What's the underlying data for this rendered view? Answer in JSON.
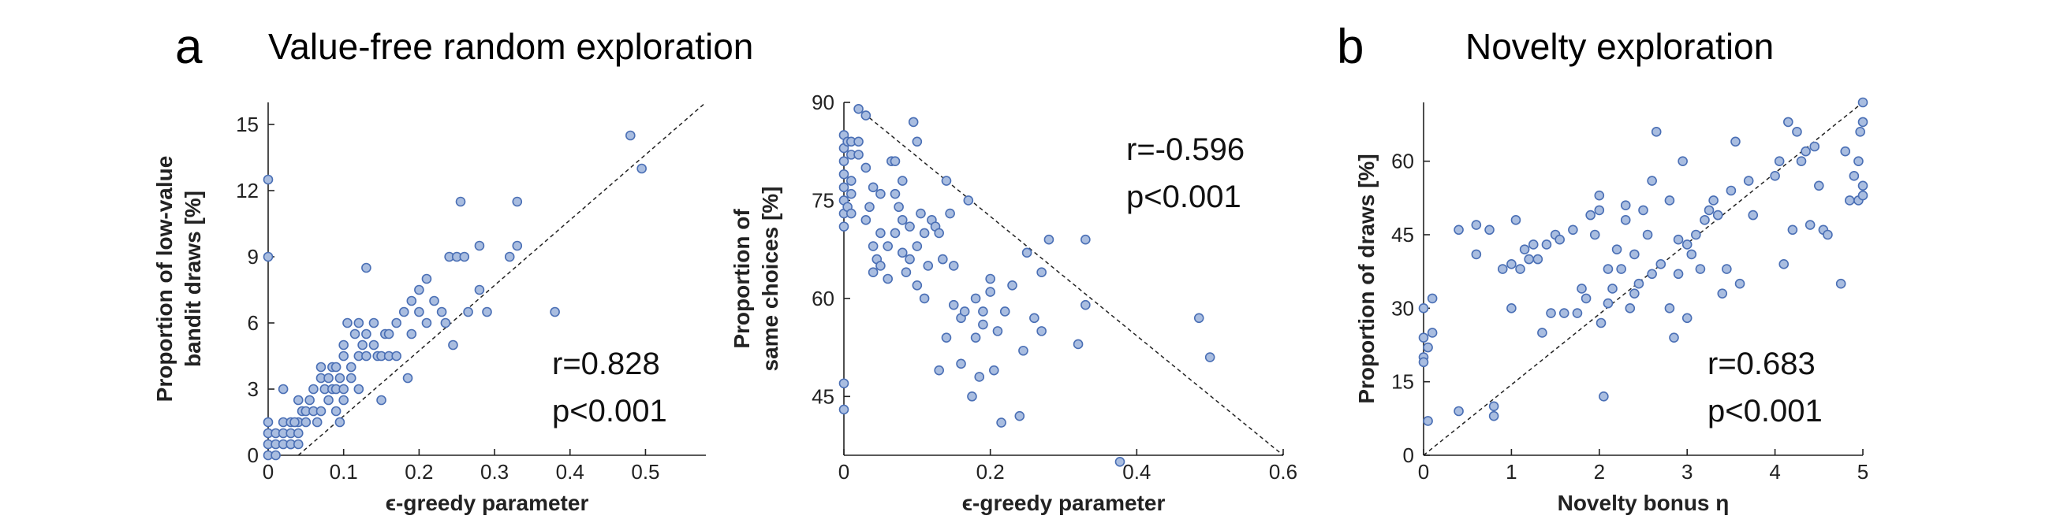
{
  "labels": {
    "a": {
      "letter": "a",
      "title": "Value-free random exploration"
    },
    "b": {
      "letter": "b",
      "title": "Novelty exploration"
    }
  },
  "chart_data": [
    {
      "type": "scatter",
      "panel": "a",
      "xlabel": "ϵ-greedy parameter",
      "ylabel": [
        "Proportion of low-value",
        "bandit draws [%]"
      ],
      "xlim": [
        0,
        0.58
      ],
      "ylim": [
        0,
        16
      ],
      "xticks": [
        0,
        0.1,
        0.2,
        0.3,
        0.4,
        0.5
      ],
      "xtick_labels": [
        "0",
        "0.1",
        "0.2",
        "0.3",
        "0.4",
        "0.5"
      ],
      "yticks": [
        0,
        3,
        6,
        9,
        12,
        15
      ],
      "ytick_labels": [
        "0",
        "3",
        "6",
        "9",
        "12",
        "15"
      ],
      "stats": [
        "r=0.828",
        "p<0.001"
      ],
      "fit_line": [
        [
          0.04,
          0
        ],
        [
          0.58,
          16
        ]
      ],
      "points": [
        [
          0,
          12.5
        ],
        [
          0,
          9
        ],
        [
          0,
          1.5
        ],
        [
          0,
          1
        ],
        [
          0,
          0.5
        ],
        [
          0,
          0
        ],
        [
          0.01,
          1
        ],
        [
          0.01,
          0.5
        ],
        [
          0.01,
          0
        ],
        [
          0.02,
          1
        ],
        [
          0.02,
          0.5
        ],
        [
          0.02,
          1.5
        ],
        [
          0.03,
          1
        ],
        [
          0.03,
          0.5
        ],
        [
          0.03,
          0.5
        ],
        [
          0.04,
          1.5
        ],
        [
          0.04,
          1
        ],
        [
          0.04,
          0.5
        ],
        [
          0.02,
          3
        ],
        [
          0.03,
          1.5
        ],
        [
          0.035,
          1.5
        ],
        [
          0.04,
          2.5
        ],
        [
          0.045,
          2
        ],
        [
          0.05,
          1.5
        ],
        [
          0.05,
          2
        ],
        [
          0.055,
          2.5
        ],
        [
          0.06,
          2
        ],
        [
          0.06,
          3
        ],
        [
          0.065,
          1.5
        ],
        [
          0.07,
          2
        ],
        [
          0.07,
          3.5
        ],
        [
          0.07,
          4
        ],
        [
          0.075,
          3
        ],
        [
          0.08,
          2.5
        ],
        [
          0.08,
          3.5
        ],
        [
          0.085,
          3
        ],
        [
          0.085,
          4
        ],
        [
          0.09,
          2
        ],
        [
          0.09,
          3
        ],
        [
          0.09,
          4
        ],
        [
          0.095,
          3.5
        ],
        [
          0.095,
          1.5
        ],
        [
          0.1,
          4.5
        ],
        [
          0.1,
          3
        ],
        [
          0.1,
          2.5
        ],
        [
          0.1,
          5
        ],
        [
          0.105,
          6
        ],
        [
          0.11,
          4
        ],
        [
          0.11,
          3.5
        ],
        [
          0.115,
          5.5
        ],
        [
          0.12,
          3
        ],
        [
          0.12,
          4.5
        ],
        [
          0.12,
          6
        ],
        [
          0.125,
          5
        ],
        [
          0.13,
          4.5
        ],
        [
          0.13,
          5.5
        ],
        [
          0.13,
          8.5
        ],
        [
          0.14,
          5
        ],
        [
          0.14,
          6
        ],
        [
          0.145,
          4.5
        ],
        [
          0.15,
          2.5
        ],
        [
          0.15,
          4.5
        ],
        [
          0.155,
          5.5
        ],
        [
          0.16,
          5.5
        ],
        [
          0.16,
          4.5
        ],
        [
          0.17,
          6
        ],
        [
          0.17,
          4.5
        ],
        [
          0.18,
          6.5
        ],
        [
          0.185,
          3.5
        ],
        [
          0.19,
          5.5
        ],
        [
          0.19,
          7
        ],
        [
          0.2,
          7.5
        ],
        [
          0.2,
          6.5
        ],
        [
          0.21,
          6
        ],
        [
          0.21,
          8
        ],
        [
          0.22,
          7
        ],
        [
          0.23,
          6.5
        ],
        [
          0.235,
          6
        ],
        [
          0.24,
          9
        ],
        [
          0.245,
          5
        ],
        [
          0.25,
          9
        ],
        [
          0.255,
          11.5
        ],
        [
          0.26,
          9
        ],
        [
          0.265,
          6.5
        ],
        [
          0.28,
          9.5
        ],
        [
          0.28,
          7.5
        ],
        [
          0.29,
          6.5
        ],
        [
          0.32,
          9
        ],
        [
          0.33,
          11.5
        ],
        [
          0.33,
          9.5
        ],
        [
          0.38,
          6.5
        ],
        [
          0.48,
          14.5
        ],
        [
          0.495,
          13
        ]
      ]
    },
    {
      "type": "scatter",
      "panel": "a",
      "xlabel": "ϵ-greedy parameter",
      "ylabel": [
        "Proportion of",
        "same choices [%]"
      ],
      "xlim": [
        0,
        0.6
      ],
      "ylim": [
        36,
        90
      ],
      "xticks": [
        0,
        0.2,
        0.4,
        0.6
      ],
      "xtick_labels": [
        "0",
        "0.2",
        "0.4",
        "0.6"
      ],
      "yticks": [
        45,
        60,
        75,
        90
      ],
      "ytick_labels": [
        "45",
        "60",
        "75",
        "90"
      ],
      "stats": [
        "r=-0.596",
        "p<0.001"
      ],
      "fit_line": [
        [
          0.02,
          89
        ],
        [
          0.6,
          36
        ]
      ],
      "points": [
        [
          0,
          85
        ],
        [
          0,
          83
        ],
        [
          0,
          81
        ],
        [
          0,
          79
        ],
        [
          0,
          77
        ],
        [
          0,
          75
        ],
        [
          0,
          73
        ],
        [
          0,
          71
        ],
        [
          0,
          47
        ],
        [
          0,
          43
        ],
        [
          0.005,
          84
        ],
        [
          0.005,
          74
        ],
        [
          0.01,
          84
        ],
        [
          0.01,
          82
        ],
        [
          0.01,
          78
        ],
        [
          0.01,
          76
        ],
        [
          0.01,
          73
        ],
        [
          0.02,
          89
        ],
        [
          0.02,
          84
        ],
        [
          0.02,
          82
        ],
        [
          0.03,
          88
        ],
        [
          0.03,
          80
        ],
        [
          0.03,
          72
        ],
        [
          0.035,
          74
        ],
        [
          0.04,
          77
        ],
        [
          0.04,
          68
        ],
        [
          0.04,
          64
        ],
        [
          0.045,
          66
        ],
        [
          0.05,
          76
        ],
        [
          0.05,
          70
        ],
        [
          0.05,
          65
        ],
        [
          0.06,
          68
        ],
        [
          0.06,
          63
        ],
        [
          0.065,
          81
        ],
        [
          0.07,
          81
        ],
        [
          0.07,
          76
        ],
        [
          0.07,
          70
        ],
        [
          0.075,
          74
        ],
        [
          0.08,
          78
        ],
        [
          0.08,
          72
        ],
        [
          0.08,
          67
        ],
        [
          0.085,
          64
        ],
        [
          0.09,
          71
        ],
        [
          0.09,
          66
        ],
        [
          0.095,
          87
        ],
        [
          0.1,
          84
        ],
        [
          0.1,
          68
        ],
        [
          0.1,
          62
        ],
        [
          0.105,
          73
        ],
        [
          0.11,
          70
        ],
        [
          0.11,
          60
        ],
        [
          0.115,
          65
        ],
        [
          0.12,
          72
        ],
        [
          0.125,
          71
        ],
        [
          0.13,
          70
        ],
        [
          0.13,
          49
        ],
        [
          0.135,
          66
        ],
        [
          0.14,
          78
        ],
        [
          0.14,
          54
        ],
        [
          0.145,
          73
        ],
        [
          0.15,
          65
        ],
        [
          0.15,
          59
        ],
        [
          0.16,
          57
        ],
        [
          0.16,
          50
        ],
        [
          0.165,
          58
        ],
        [
          0.17,
          75
        ],
        [
          0.175,
          45
        ],
        [
          0.18,
          60
        ],
        [
          0.18,
          54
        ],
        [
          0.185,
          48
        ],
        [
          0.19,
          58
        ],
        [
          0.19,
          56
        ],
        [
          0.2,
          63
        ],
        [
          0.2,
          61
        ],
        [
          0.205,
          49
        ],
        [
          0.21,
          55
        ],
        [
          0.215,
          41
        ],
        [
          0.22,
          58
        ],
        [
          0.23,
          62
        ],
        [
          0.24,
          42
        ],
        [
          0.245,
          52
        ],
        [
          0.25,
          67
        ],
        [
          0.26,
          57
        ],
        [
          0.27,
          64
        ],
        [
          0.27,
          55
        ],
        [
          0.28,
          69
        ],
        [
          0.32,
          53
        ],
        [
          0.33,
          59
        ],
        [
          0.33,
          69
        ],
        [
          0.377,
          35
        ],
        [
          0.485,
          57
        ],
        [
          0.5,
          51
        ]
      ]
    },
    {
      "type": "scatter",
      "panel": "b",
      "xlabel": "Novelty bonus η",
      "ylabel": [
        "Proportion of draws [%]"
      ],
      "xlim": [
        0,
        5
      ],
      "ylim": [
        0,
        72
      ],
      "xticks": [
        0,
        1,
        2,
        3,
        4,
        5
      ],
      "xtick_labels": [
        "0",
        "1",
        "2",
        "3",
        "4",
        "5"
      ],
      "yticks": [
        0,
        15,
        30,
        45,
        60
      ],
      "ytick_labels": [
        "0",
        "15",
        "30",
        "45",
        "60"
      ],
      "stats": [
        "r=0.683",
        "p<0.001"
      ],
      "fit_line": [
        [
          0,
          0
        ],
        [
          5,
          72
        ]
      ],
      "points": [
        [
          0,
          30
        ],
        [
          0,
          24
        ],
        [
          0,
          20
        ],
        [
          0,
          19
        ],
        [
          0.05,
          7
        ],
        [
          0.05,
          22
        ],
        [
          0.1,
          25
        ],
        [
          0.1,
          32
        ],
        [
          0.4,
          46
        ],
        [
          0.4,
          9
        ],
        [
          0.6,
          47
        ],
        [
          0.6,
          41
        ],
        [
          0.75,
          46
        ],
        [
          0.8,
          10
        ],
        [
          0.8,
          8
        ],
        [
          0.9,
          38
        ],
        [
          1,
          39
        ],
        [
          1,
          30
        ],
        [
          1.05,
          48
        ],
        [
          1.1,
          38
        ],
        [
          1.15,
          42
        ],
        [
          1.2,
          40
        ],
        [
          1.25,
          43
        ],
        [
          1.3,
          40
        ],
        [
          1.35,
          25
        ],
        [
          1.4,
          43
        ],
        [
          1.45,
          29
        ],
        [
          1.5,
          45
        ],
        [
          1.55,
          44
        ],
        [
          1.6,
          29
        ],
        [
          1.7,
          46
        ],
        [
          1.75,
          29
        ],
        [
          1.8,
          34
        ],
        [
          1.85,
          32
        ],
        [
          1.9,
          49
        ],
        [
          1.95,
          45
        ],
        [
          2,
          53
        ],
        [
          2,
          50
        ],
        [
          2.02,
          27
        ],
        [
          2.05,
          12
        ],
        [
          2.1,
          38
        ],
        [
          2.1,
          31
        ],
        [
          2.15,
          34
        ],
        [
          2.2,
          42
        ],
        [
          2.25,
          38
        ],
        [
          2.3,
          48
        ],
        [
          2.3,
          51
        ],
        [
          2.35,
          30
        ],
        [
          2.4,
          41
        ],
        [
          2.4,
          33
        ],
        [
          2.45,
          35
        ],
        [
          2.5,
          50
        ],
        [
          2.55,
          45
        ],
        [
          2.6,
          56
        ],
        [
          2.6,
          37
        ],
        [
          2.65,
          66
        ],
        [
          2.7,
          39
        ],
        [
          2.8,
          52
        ],
        [
          2.8,
          30
        ],
        [
          2.85,
          24
        ],
        [
          2.9,
          37
        ],
        [
          2.9,
          44
        ],
        [
          2.95,
          60
        ],
        [
          3,
          43
        ],
        [
          3,
          28
        ],
        [
          3.05,
          41
        ],
        [
          3.1,
          45
        ],
        [
          3.15,
          38
        ],
        [
          3.2,
          48
        ],
        [
          3.25,
          50
        ],
        [
          3.3,
          52
        ],
        [
          3.35,
          49
        ],
        [
          3.4,
          33
        ],
        [
          3.45,
          38
        ],
        [
          3.5,
          54
        ],
        [
          3.55,
          64
        ],
        [
          3.6,
          35
        ],
        [
          3.7,
          56
        ],
        [
          3.75,
          49
        ],
        [
          4,
          57
        ],
        [
          4.05,
          60
        ],
        [
          4.1,
          39
        ],
        [
          4.15,
          68
        ],
        [
          4.2,
          46
        ],
        [
          4.25,
          66
        ],
        [
          4.3,
          60
        ],
        [
          4.35,
          62
        ],
        [
          4.4,
          47
        ],
        [
          4.45,
          63
        ],
        [
          4.5,
          55
        ],
        [
          4.55,
          46
        ],
        [
          4.6,
          45
        ],
        [
          4.75,
          35
        ],
        [
          4.8,
          62
        ],
        [
          4.85,
          52
        ],
        [
          4.9,
          57
        ],
        [
          4.95,
          60
        ],
        [
          4.95,
          52
        ],
        [
          4.97,
          66
        ],
        [
          5,
          72
        ],
        [
          5,
          68
        ],
        [
          5,
          55
        ],
        [
          5,
          53
        ]
      ]
    }
  ]
}
